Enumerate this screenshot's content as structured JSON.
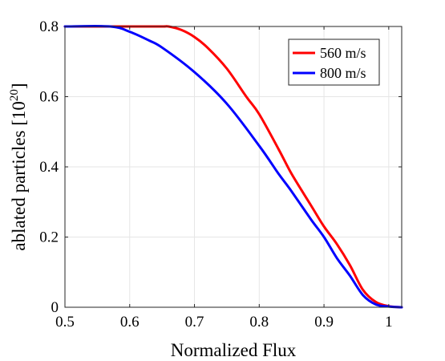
{
  "chart_data": {
    "type": "line",
    "title": "",
    "xlabel": "Normalized Flux",
    "ylabel": "ablated particles [10",
    "ylabel_sup": "20",
    "ylabel_suffix": "]",
    "xlim": [
      0.5,
      1.02
    ],
    "ylim": [
      0,
      0.8
    ],
    "xticks": [
      0.5,
      0.6,
      0.7,
      0.8,
      0.9,
      1.0
    ],
    "xtick_labels": [
      "0.5",
      "0.6",
      "0.7",
      "0.8",
      "0.9",
      "1"
    ],
    "yticks": [
      0,
      0.2,
      0.4,
      0.6,
      0.8
    ],
    "ytick_labels": [
      "0",
      "0.2",
      "0.4",
      "0.6",
      "0.8"
    ],
    "grid": true,
    "legend_position": "top-right",
    "series": [
      {
        "name": "560 m/s",
        "color": "#ff0000",
        "x": [
          0.5,
          0.6,
          0.65,
          0.66,
          0.68,
          0.7,
          0.72,
          0.75,
          0.78,
          0.8,
          0.83,
          0.85,
          0.88,
          0.9,
          0.92,
          0.94,
          0.96,
          0.98,
          1.0,
          1.02
        ],
        "y": [
          0.8,
          0.8,
          0.8,
          0.8,
          0.79,
          0.77,
          0.74,
          0.68,
          0.6,
          0.55,
          0.45,
          0.38,
          0.29,
          0.23,
          0.18,
          0.12,
          0.05,
          0.015,
          0.003,
          0.0
        ]
      },
      {
        "name": "800 m/s",
        "color": "#0000ff",
        "x": [
          0.5,
          0.57,
          0.6,
          0.63,
          0.65,
          0.7,
          0.75,
          0.8,
          0.83,
          0.85,
          0.88,
          0.9,
          0.92,
          0.94,
          0.96,
          0.98,
          1.0,
          1.02
        ],
        "y": [
          0.8,
          0.8,
          0.785,
          0.76,
          0.74,
          0.67,
          0.58,
          0.46,
          0.38,
          0.33,
          0.25,
          0.2,
          0.14,
          0.09,
          0.035,
          0.008,
          0.002,
          0.0
        ]
      }
    ]
  }
}
